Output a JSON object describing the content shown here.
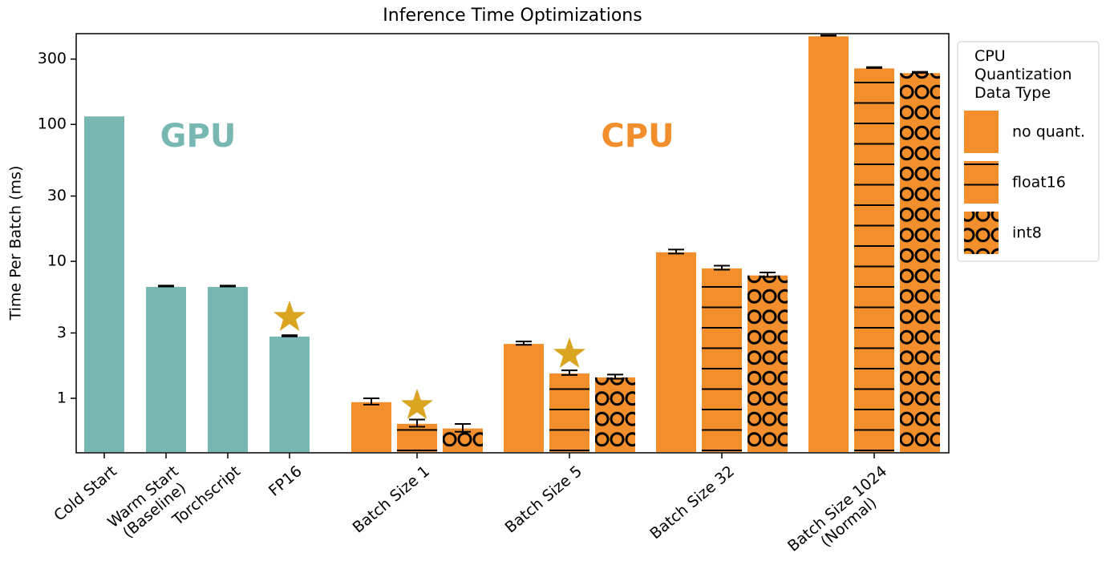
{
  "chart_data": {
    "type": "bar",
    "title": "Inference Time Optimizations",
    "y_label": "Time Per Batch (ms)",
    "log_scale_y": true,
    "ylim": [
      0.4,
      460
    ],
    "yticks": [
      1,
      3,
      10,
      30,
      100,
      300
    ],
    "categories": [
      "Cold Start",
      "Warm Start\n(Baseline)",
      "Torchscript",
      "FP16",
      "Batch Size 1",
      "Batch Size 5",
      "Batch Size 32",
      "Batch Size 1024\n(Normal)"
    ],
    "annotations": [
      "GPU",
      "CPU"
    ],
    "legend_title": "CPU\nQuantization\nData Type",
    "legend_position": "outside right",
    "series": [
      {
        "color": "#78b7b2",
        "hatch": "none",
        "values": [
          116,
          6.6,
          6.6,
          2.86,
          null,
          null,
          null,
          null
        ],
        "errors": [
          null,
          0.05,
          0.05,
          0.03,
          null,
          null,
          null,
          null
        ]
      },
      {
        "name": "no quant.",
        "color": "#f28e2b",
        "hatch": "none",
        "values": [
          null,
          null,
          null,
          null,
          0.95,
          2.53,
          11.8,
          446
        ],
        "errors": [
          null,
          null,
          null,
          null,
          0.05,
          0.07,
          0.4,
          2
        ]
      },
      {
        "name": "float16",
        "color": "#f28e2b",
        "hatch": "lines",
        "values": [
          null,
          null,
          null,
          null,
          0.66,
          1.54,
          9.0,
          260
        ],
        "errors": [
          null,
          null,
          null,
          null,
          0.04,
          0.06,
          0.3,
          2
        ]
      },
      {
        "name": "int8",
        "color": "#f28e2b",
        "hatch": "circles",
        "values": [
          null,
          null,
          null,
          null,
          0.61,
          1.44,
          8.0,
          240
        ],
        "errors": [
          null,
          null,
          null,
          null,
          0.04,
          0.05,
          0.3,
          2
        ]
      }
    ]
  }
}
